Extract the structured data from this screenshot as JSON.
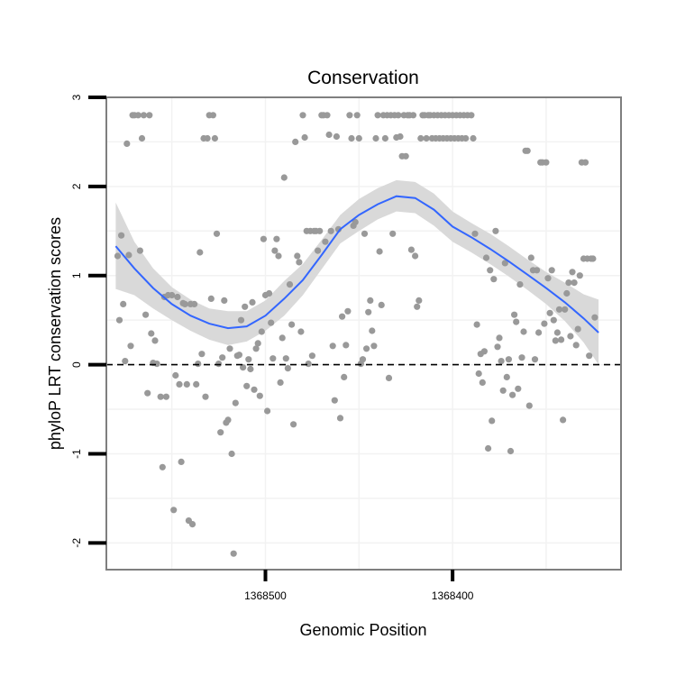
{
  "chart_data": {
    "type": "scatter",
    "title": "Conservation",
    "xlabel": "Genomic Position",
    "ylabel": "phyloP LRT conservation scores",
    "x_reversed": true,
    "xlim": [
      1368585,
      1368310
    ],
    "ylim": [
      -2.3,
      3
    ],
    "x_ticks": [
      {
        "value": 1368500,
        "label": "1368500"
      },
      {
        "value": 1368400,
        "label": "1368400"
      }
    ],
    "y_ticks": [
      {
        "value": -2,
        "label": "-2"
      },
      {
        "value": -1,
        "label": "-1"
      },
      {
        "value": 0,
        "label": "0"
      },
      {
        "value": 1,
        "label": "1"
      },
      {
        "value": 2,
        "label": "2"
      },
      {
        "value": 3,
        "label": "3"
      }
    ],
    "reference_line": {
      "y": 0,
      "style": "dashed"
    },
    "grid": true,
    "colors": {
      "points": "#999999",
      "smooth_line": "#3366ff",
      "confidence_band": "#d9d9d9",
      "grid": "#f2f2f2",
      "panel_border": "#7f7f7f"
    },
    "points": [
      {
        "x": 1368579,
        "y": 1.22
      },
      {
        "x": 1368578,
        "y": 0.5
      },
      {
        "x": 1368577,
        "y": 1.45
      },
      {
        "x": 1368576,
        "y": 0.68
      },
      {
        "x": 1368575,
        "y": 0.04
      },
      {
        "x": 1368574,
        "y": 2.48
      },
      {
        "x": 1368573,
        "y": 1.23
      },
      {
        "x": 1368572,
        "y": 0.21
      },
      {
        "x": 1368571,
        "y": 2.8
      },
      {
        "x": 1368570,
        "y": 2.8
      },
      {
        "x": 1368568,
        "y": 2.8
      },
      {
        "x": 1368567,
        "y": 1.28
      },
      {
        "x": 1368566,
        "y": 2.54
      },
      {
        "x": 1368565,
        "y": 2.8
      },
      {
        "x": 1368564,
        "y": 0.56
      },
      {
        "x": 1368563,
        "y": -0.32
      },
      {
        "x": 1368562,
        "y": 2.8
      },
      {
        "x": 1368561,
        "y": 0.35
      },
      {
        "x": 1368560,
        "y": 0.02
      },
      {
        "x": 1368559,
        "y": 0.27
      },
      {
        "x": 1368558,
        "y": 0.01
      },
      {
        "x": 1368556,
        "y": -0.36
      },
      {
        "x": 1368555,
        "y": -1.15
      },
      {
        "x": 1368554,
        "y": 0.76
      },
      {
        "x": 1368553,
        "y": -0.36
      },
      {
        "x": 1368552,
        "y": 0.78
      },
      {
        "x": 1368550,
        "y": 0.78
      },
      {
        "x": 1368549,
        "y": -1.63
      },
      {
        "x": 1368548,
        "y": -0.12
      },
      {
        "x": 1368547,
        "y": 0.76
      },
      {
        "x": 1368546,
        "y": -0.22
      },
      {
        "x": 1368545,
        "y": -1.09
      },
      {
        "x": 1368544,
        "y": 0.69
      },
      {
        "x": 1368543,
        "y": 0.68
      },
      {
        "x": 1368542,
        "y": -0.22
      },
      {
        "x": 1368541,
        "y": -1.75
      },
      {
        "x": 1368540,
        "y": 0.68
      },
      {
        "x": 1368539,
        "y": -1.79
      },
      {
        "x": 1368538,
        "y": 0.68
      },
      {
        "x": 1368537,
        "y": -0.22
      },
      {
        "x": 1368536,
        "y": 0.01
      },
      {
        "x": 1368535,
        "y": 1.26
      },
      {
        "x": 1368534,
        "y": 0.12
      },
      {
        "x": 1368533,
        "y": 2.54
      },
      {
        "x": 1368532,
        "y": -0.36
      },
      {
        "x": 1368531,
        "y": 2.54
      },
      {
        "x": 1368530,
        "y": 2.8
      },
      {
        "x": 1368529,
        "y": 0.74
      },
      {
        "x": 1368528,
        "y": 2.8
      },
      {
        "x": 1368527,
        "y": 2.54
      },
      {
        "x": 1368526,
        "y": 1.47
      },
      {
        "x": 1368525,
        "y": 0.01
      },
      {
        "x": 1368524,
        "y": -0.76
      },
      {
        "x": 1368523,
        "y": 0.08
      },
      {
        "x": 1368522,
        "y": 0.72
      },
      {
        "x": 1368521,
        "y": -0.65
      },
      {
        "x": 1368520,
        "y": -0.62
      },
      {
        "x": 1368519,
        "y": 0.18
      },
      {
        "x": 1368518,
        "y": -1.0
      },
      {
        "x": 1368517,
        "y": -2.12
      },
      {
        "x": 1368516,
        "y": -0.43
      },
      {
        "x": 1368515,
        "y": 0.1
      },
      {
        "x": 1368514,
        "y": 0.11
      },
      {
        "x": 1368513,
        "y": 0.5
      },
      {
        "x": 1368512,
        "y": -0.03
      },
      {
        "x": 1368511,
        "y": 0.65
      },
      {
        "x": 1368510,
        "y": -0.24
      },
      {
        "x": 1368509,
        "y": 0.06
      },
      {
        "x": 1368508,
        "y": -0.05
      },
      {
        "x": 1368507,
        "y": 0.7
      },
      {
        "x": 1368506,
        "y": -0.28
      },
      {
        "x": 1368505,
        "y": 0.18
      },
      {
        "x": 1368504,
        "y": 0.24
      },
      {
        "x": 1368503,
        "y": -0.35
      },
      {
        "x": 1368502,
        "y": 0.37
      },
      {
        "x": 1368501,
        "y": 1.41
      },
      {
        "x": 1368500,
        "y": 0.78
      },
      {
        "x": 1368499,
        "y": -0.52
      },
      {
        "x": 1368498,
        "y": 0.8
      },
      {
        "x": 1368497,
        "y": 0.47
      },
      {
        "x": 1368496,
        "y": 0.07
      },
      {
        "x": 1368495,
        "y": 1.28
      },
      {
        "x": 1368494,
        "y": 1.41
      },
      {
        "x": 1368493,
        "y": 1.22
      },
      {
        "x": 1368492,
        "y": -0.2
      },
      {
        "x": 1368491,
        "y": 0.3
      },
      {
        "x": 1368490,
        "y": 2.1
      },
      {
        "x": 1368489,
        "y": 0.07
      },
      {
        "x": 1368488,
        "y": -0.04
      },
      {
        "x": 1368487,
        "y": 0.9
      },
      {
        "x": 1368486,
        "y": 0.45
      },
      {
        "x": 1368485,
        "y": -0.67
      },
      {
        "x": 1368484,
        "y": 2.5
      },
      {
        "x": 1368483,
        "y": 1.22
      },
      {
        "x": 1368482,
        "y": 1.15
      },
      {
        "x": 1368481,
        "y": 0.37
      },
      {
        "x": 1368480,
        "y": 2.8
      },
      {
        "x": 1368479,
        "y": 2.55
      },
      {
        "x": 1368478,
        "y": 1.5
      },
      {
        "x": 1368477,
        "y": 0.01
      },
      {
        "x": 1368476,
        "y": 1.5
      },
      {
        "x": 1368475,
        "y": 0.1
      },
      {
        "x": 1368474,
        "y": 1.5
      },
      {
        "x": 1368473,
        "y": 1.5
      },
      {
        "x": 1368472,
        "y": 1.28
      },
      {
        "x": 1368471,
        "y": 1.5
      },
      {
        "x": 1368470,
        "y": 2.8
      },
      {
        "x": 1368469,
        "y": 2.8
      },
      {
        "x": 1368468,
        "y": 1.38
      },
      {
        "x": 1368467,
        "y": 2.8
      },
      {
        "x": 1368466,
        "y": 2.58
      },
      {
        "x": 1368465,
        "y": 1.5
      },
      {
        "x": 1368464,
        "y": 0.21
      },
      {
        "x": 1368463,
        "y": -0.4
      },
      {
        "x": 1368462,
        "y": 2.56
      },
      {
        "x": 1368461,
        "y": 1.52
      },
      {
        "x": 1368460,
        "y": -0.6
      },
      {
        "x": 1368459,
        "y": 0.54
      },
      {
        "x": 1368458,
        "y": -0.14
      },
      {
        "x": 1368457,
        "y": 0.22
      },
      {
        "x": 1368456,
        "y": 0.6
      },
      {
        "x": 1368455,
        "y": 2.8
      },
      {
        "x": 1368454,
        "y": 2.54
      },
      {
        "x": 1368453,
        "y": 1.56
      },
      {
        "x": 1368452,
        "y": 1.6
      },
      {
        "x": 1368451,
        "y": 2.8
      },
      {
        "x": 1368450,
        "y": 2.54
      },
      {
        "x": 1368449,
        "y": 0.01
      },
      {
        "x": 1368448,
        "y": 0.06
      },
      {
        "x": 1368447,
        "y": 1.47
      },
      {
        "x": 1368446,
        "y": 0.18
      },
      {
        "x": 1368445,
        "y": 0.59
      },
      {
        "x": 1368444,
        "y": 0.72
      },
      {
        "x": 1368443,
        "y": 0.38
      },
      {
        "x": 1368442,
        "y": 0.21
      },
      {
        "x": 1368441,
        "y": 2.54
      },
      {
        "x": 1368440,
        "y": 2.8
      },
      {
        "x": 1368439,
        "y": 1.27
      },
      {
        "x": 1368438,
        "y": 0.67
      },
      {
        "x": 1368437,
        "y": 2.8
      },
      {
        "x": 1368436,
        "y": 2.54
      },
      {
        "x": 1368435,
        "y": 2.8
      },
      {
        "x": 1368434,
        "y": -0.15
      },
      {
        "x": 1368433,
        "y": 2.8
      },
      {
        "x": 1368432,
        "y": 1.47
      },
      {
        "x": 1368431,
        "y": 2.8
      },
      {
        "x": 1368430,
        "y": 2.55
      },
      {
        "x": 1368429,
        "y": 2.8
      },
      {
        "x": 1368428,
        "y": 2.56
      },
      {
        "x": 1368427,
        "y": 2.34
      },
      {
        "x": 1368426,
        "y": 2.8
      },
      {
        "x": 1368425,
        "y": 2.34
      },
      {
        "x": 1368424,
        "y": 2.8
      },
      {
        "x": 1368423,
        "y": 2.8
      },
      {
        "x": 1368422,
        "y": 1.29
      },
      {
        "x": 1368421,
        "y": 2.8
      },
      {
        "x": 1368420,
        "y": 1.22
      },
      {
        "x": 1368419,
        "y": 0.65
      },
      {
        "x": 1368418,
        "y": 0.72
      },
      {
        "x": 1368417,
        "y": 2.54
      },
      {
        "x": 1368416,
        "y": 2.8
      },
      {
        "x": 1368415,
        "y": 2.8
      },
      {
        "x": 1368414,
        "y": 2.54
      },
      {
        "x": 1368413,
        "y": 2.8
      },
      {
        "x": 1368412,
        "y": 2.8
      },
      {
        "x": 1368411,
        "y": 2.54
      },
      {
        "x": 1368410,
        "y": 2.8
      },
      {
        "x": 1368409,
        "y": 2.54
      },
      {
        "x": 1368408,
        "y": 2.8
      },
      {
        "x": 1368407,
        "y": 2.54
      },
      {
        "x": 1368406,
        "y": 2.8
      },
      {
        "x": 1368405,
        "y": 2.54
      },
      {
        "x": 1368404,
        "y": 2.8
      },
      {
        "x": 1368403,
        "y": 2.54
      },
      {
        "x": 1368402,
        "y": 2.8
      },
      {
        "x": 1368401,
        "y": 2.54
      },
      {
        "x": 1368400,
        "y": 2.8
      },
      {
        "x": 1368399,
        "y": 2.54
      },
      {
        "x": 1368398,
        "y": 2.8
      },
      {
        "x": 1368397,
        "y": 2.54
      },
      {
        "x": 1368396,
        "y": 2.8
      },
      {
        "x": 1368395,
        "y": 2.54
      },
      {
        "x": 1368394,
        "y": 2.8
      },
      {
        "x": 1368393,
        "y": 2.54
      },
      {
        "x": 1368392,
        "y": 2.8
      },
      {
        "x": 1368390,
        "y": 2.8
      },
      {
        "x": 1368389,
        "y": 2.54
      },
      {
        "x": 1368388,
        "y": 1.47
      },
      {
        "x": 1368387,
        "y": 0.45
      },
      {
        "x": 1368386,
        "y": -0.1
      },
      {
        "x": 1368385,
        "y": 0.12
      },
      {
        "x": 1368384,
        "y": -0.2
      },
      {
        "x": 1368383,
        "y": 0.15
      },
      {
        "x": 1368382,
        "y": 1.2
      },
      {
        "x": 1368381,
        "y": -0.94
      },
      {
        "x": 1368380,
        "y": 1.06
      },
      {
        "x": 1368379,
        "y": -0.63
      },
      {
        "x": 1368378,
        "y": 0.96
      },
      {
        "x": 1368377,
        "y": 1.5
      },
      {
        "x": 1368376,
        "y": 0.2
      },
      {
        "x": 1368375,
        "y": 0.3
      },
      {
        "x": 1368374,
        "y": 0.04
      },
      {
        "x": 1368373,
        "y": -0.29
      },
      {
        "x": 1368372,
        "y": 1.14
      },
      {
        "x": 1368371,
        "y": -0.14
      },
      {
        "x": 1368370,
        "y": 0.06
      },
      {
        "x": 1368369,
        "y": -0.97
      },
      {
        "x": 1368368,
        "y": -0.34
      },
      {
        "x": 1368367,
        "y": 0.56
      },
      {
        "x": 1368366,
        "y": 0.48
      },
      {
        "x": 1368365,
        "y": -0.27
      },
      {
        "x": 1368364,
        "y": 0.9
      },
      {
        "x": 1368363,
        "y": 0.08
      },
      {
        "x": 1368362,
        "y": 0.37
      },
      {
        "x": 1368361,
        "y": 2.4
      },
      {
        "x": 1368360,
        "y": 2.4
      },
      {
        "x": 1368359,
        "y": -0.46
      },
      {
        "x": 1368358,
        "y": 1.2
      },
      {
        "x": 1368357,
        "y": 1.06
      },
      {
        "x": 1368356,
        "y": 0.06
      },
      {
        "x": 1368355,
        "y": 1.06
      },
      {
        "x": 1368354,
        "y": 0.36
      },
      {
        "x": 1368353,
        "y": 2.27
      },
      {
        "x": 1368352,
        "y": 2.27
      },
      {
        "x": 1368351,
        "y": 0.46
      },
      {
        "x": 1368350,
        "y": 2.27
      },
      {
        "x": 1368349,
        "y": 0.97
      },
      {
        "x": 1368348,
        "y": 0.58
      },
      {
        "x": 1368347,
        "y": 1.06
      },
      {
        "x": 1368346,
        "y": 0.5
      },
      {
        "x": 1368345,
        "y": 0.27
      },
      {
        "x": 1368344,
        "y": 0.36
      },
      {
        "x": 1368343,
        "y": 0.62
      },
      {
        "x": 1368342,
        "y": 0.28
      },
      {
        "x": 1368341,
        "y": -0.62
      },
      {
        "x": 1368340,
        "y": 0.62
      },
      {
        "x": 1368339,
        "y": 0.8
      },
      {
        "x": 1368338,
        "y": 0.92
      },
      {
        "x": 1368337,
        "y": 0.32
      },
      {
        "x": 1368336,
        "y": 1.04
      },
      {
        "x": 1368335,
        "y": 0.92
      },
      {
        "x": 1368334,
        "y": 0.22
      },
      {
        "x": 1368333,
        "y": 0.4
      },
      {
        "x": 1368332,
        "y": 1.0
      },
      {
        "x": 1368331,
        "y": 2.27
      },
      {
        "x": 1368330,
        "y": 1.19
      },
      {
        "x": 1368329,
        "y": 2.27
      },
      {
        "x": 1368328,
        "y": 1.19
      },
      {
        "x": 1368327,
        "y": 0.1
      },
      {
        "x": 1368326,
        "y": 1.19
      },
      {
        "x": 1368325,
        "y": 1.19
      },
      {
        "x": 1368324,
        "y": 0.53
      }
    ],
    "smooth": [
      {
        "x": 1368580,
        "y": 1.33,
        "lo": 0.85,
        "hi": 1.82
      },
      {
        "x": 1368570,
        "y": 1.08,
        "lo": 0.78,
        "hi": 1.38
      },
      {
        "x": 1368560,
        "y": 0.86,
        "lo": 0.63,
        "hi": 1.08
      },
      {
        "x": 1368550,
        "y": 0.68,
        "lo": 0.5,
        "hi": 0.87
      },
      {
        "x": 1368540,
        "y": 0.55,
        "lo": 0.38,
        "hi": 0.73
      },
      {
        "x": 1368530,
        "y": 0.46,
        "lo": 0.28,
        "hi": 0.63
      },
      {
        "x": 1368520,
        "y": 0.41,
        "lo": 0.22,
        "hi": 0.6
      },
      {
        "x": 1368510,
        "y": 0.43,
        "lo": 0.26,
        "hi": 0.6
      },
      {
        "x": 1368500,
        "y": 0.55,
        "lo": 0.38,
        "hi": 0.72
      },
      {
        "x": 1368490,
        "y": 0.74,
        "lo": 0.55,
        "hi": 0.94
      },
      {
        "x": 1368480,
        "y": 0.95,
        "lo": 0.78,
        "hi": 1.13
      },
      {
        "x": 1368470,
        "y": 1.23,
        "lo": 1.07,
        "hi": 1.4
      },
      {
        "x": 1368460,
        "y": 1.52,
        "lo": 1.36,
        "hi": 1.68
      },
      {
        "x": 1368450,
        "y": 1.68,
        "lo": 1.5,
        "hi": 1.86
      },
      {
        "x": 1368440,
        "y": 1.8,
        "lo": 1.63,
        "hi": 1.98
      },
      {
        "x": 1368430,
        "y": 1.89,
        "lo": 1.72,
        "hi": 2.07
      },
      {
        "x": 1368420,
        "y": 1.87,
        "lo": 1.7,
        "hi": 2.05
      },
      {
        "x": 1368410,
        "y": 1.74,
        "lo": 1.56,
        "hi": 1.92
      },
      {
        "x": 1368400,
        "y": 1.55,
        "lo": 1.38,
        "hi": 1.72
      },
      {
        "x": 1368390,
        "y": 1.43,
        "lo": 1.26,
        "hi": 1.59
      },
      {
        "x": 1368380,
        "y": 1.3,
        "lo": 1.13,
        "hi": 1.47
      },
      {
        "x": 1368370,
        "y": 1.16,
        "lo": 0.99,
        "hi": 1.33
      },
      {
        "x": 1368360,
        "y": 1.01,
        "lo": 0.84,
        "hi": 1.18
      },
      {
        "x": 1368350,
        "y": 0.86,
        "lo": 0.68,
        "hi": 1.04
      },
      {
        "x": 1368340,
        "y": 0.7,
        "lo": 0.49,
        "hi": 0.92
      },
      {
        "x": 1368330,
        "y": 0.52,
        "lo": 0.25,
        "hi": 0.79
      },
      {
        "x": 1368322,
        "y": 0.36,
        "lo": 0.0,
        "hi": 0.73
      }
    ]
  }
}
